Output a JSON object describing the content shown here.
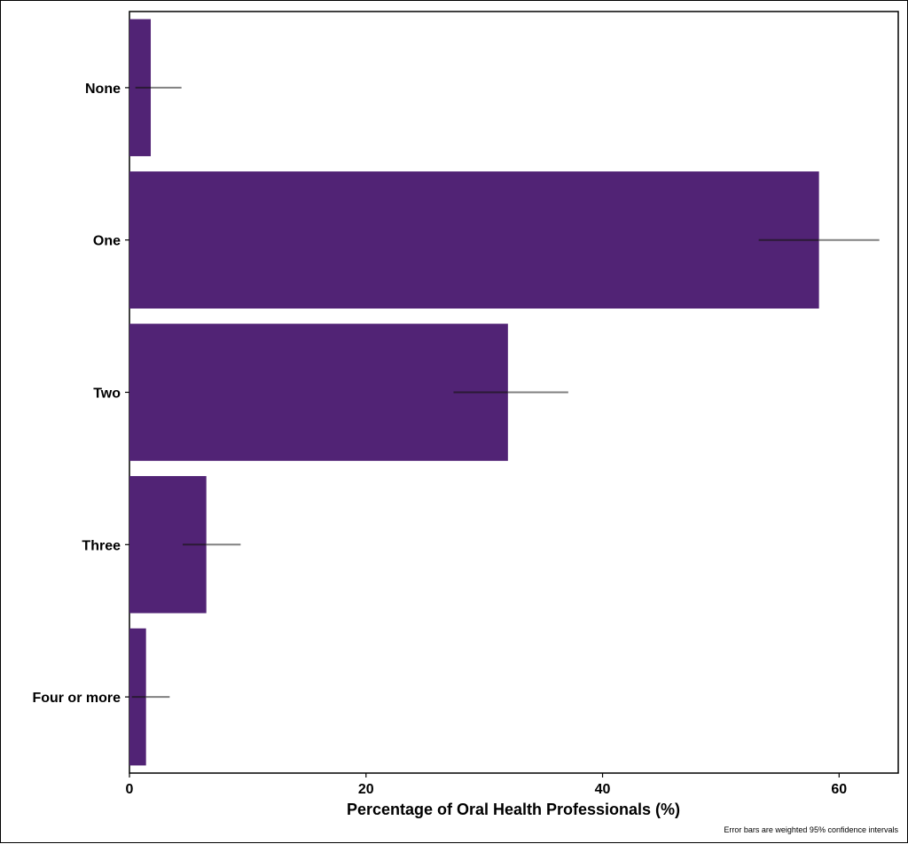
{
  "chart_data": {
    "type": "bar",
    "orientation": "horizontal",
    "categories": [
      "None",
      "One",
      "Two",
      "Three",
      "Four or more"
    ],
    "values": [
      1.8,
      58.3,
      32.0,
      6.5,
      1.4
    ],
    "ci_low": [
      0.5,
      53.2,
      27.4,
      4.5,
      0.2
    ],
    "ci_high": [
      4.4,
      63.4,
      37.1,
      9.4,
      3.4
    ],
    "xlabel": "Percentage of Oral Health Professionals (%)",
    "ylabel": "",
    "xlim": [
      0,
      65
    ],
    "x_ticks": [
      0,
      20,
      40,
      60
    ],
    "grid": false,
    "caption": "Error bars are weighted 95% confidence intervals",
    "colors": {
      "bar": "#512375",
      "error_bar": "#808080",
      "error_bar_overlap": "#2a1a35",
      "axis": "#000000"
    }
  }
}
